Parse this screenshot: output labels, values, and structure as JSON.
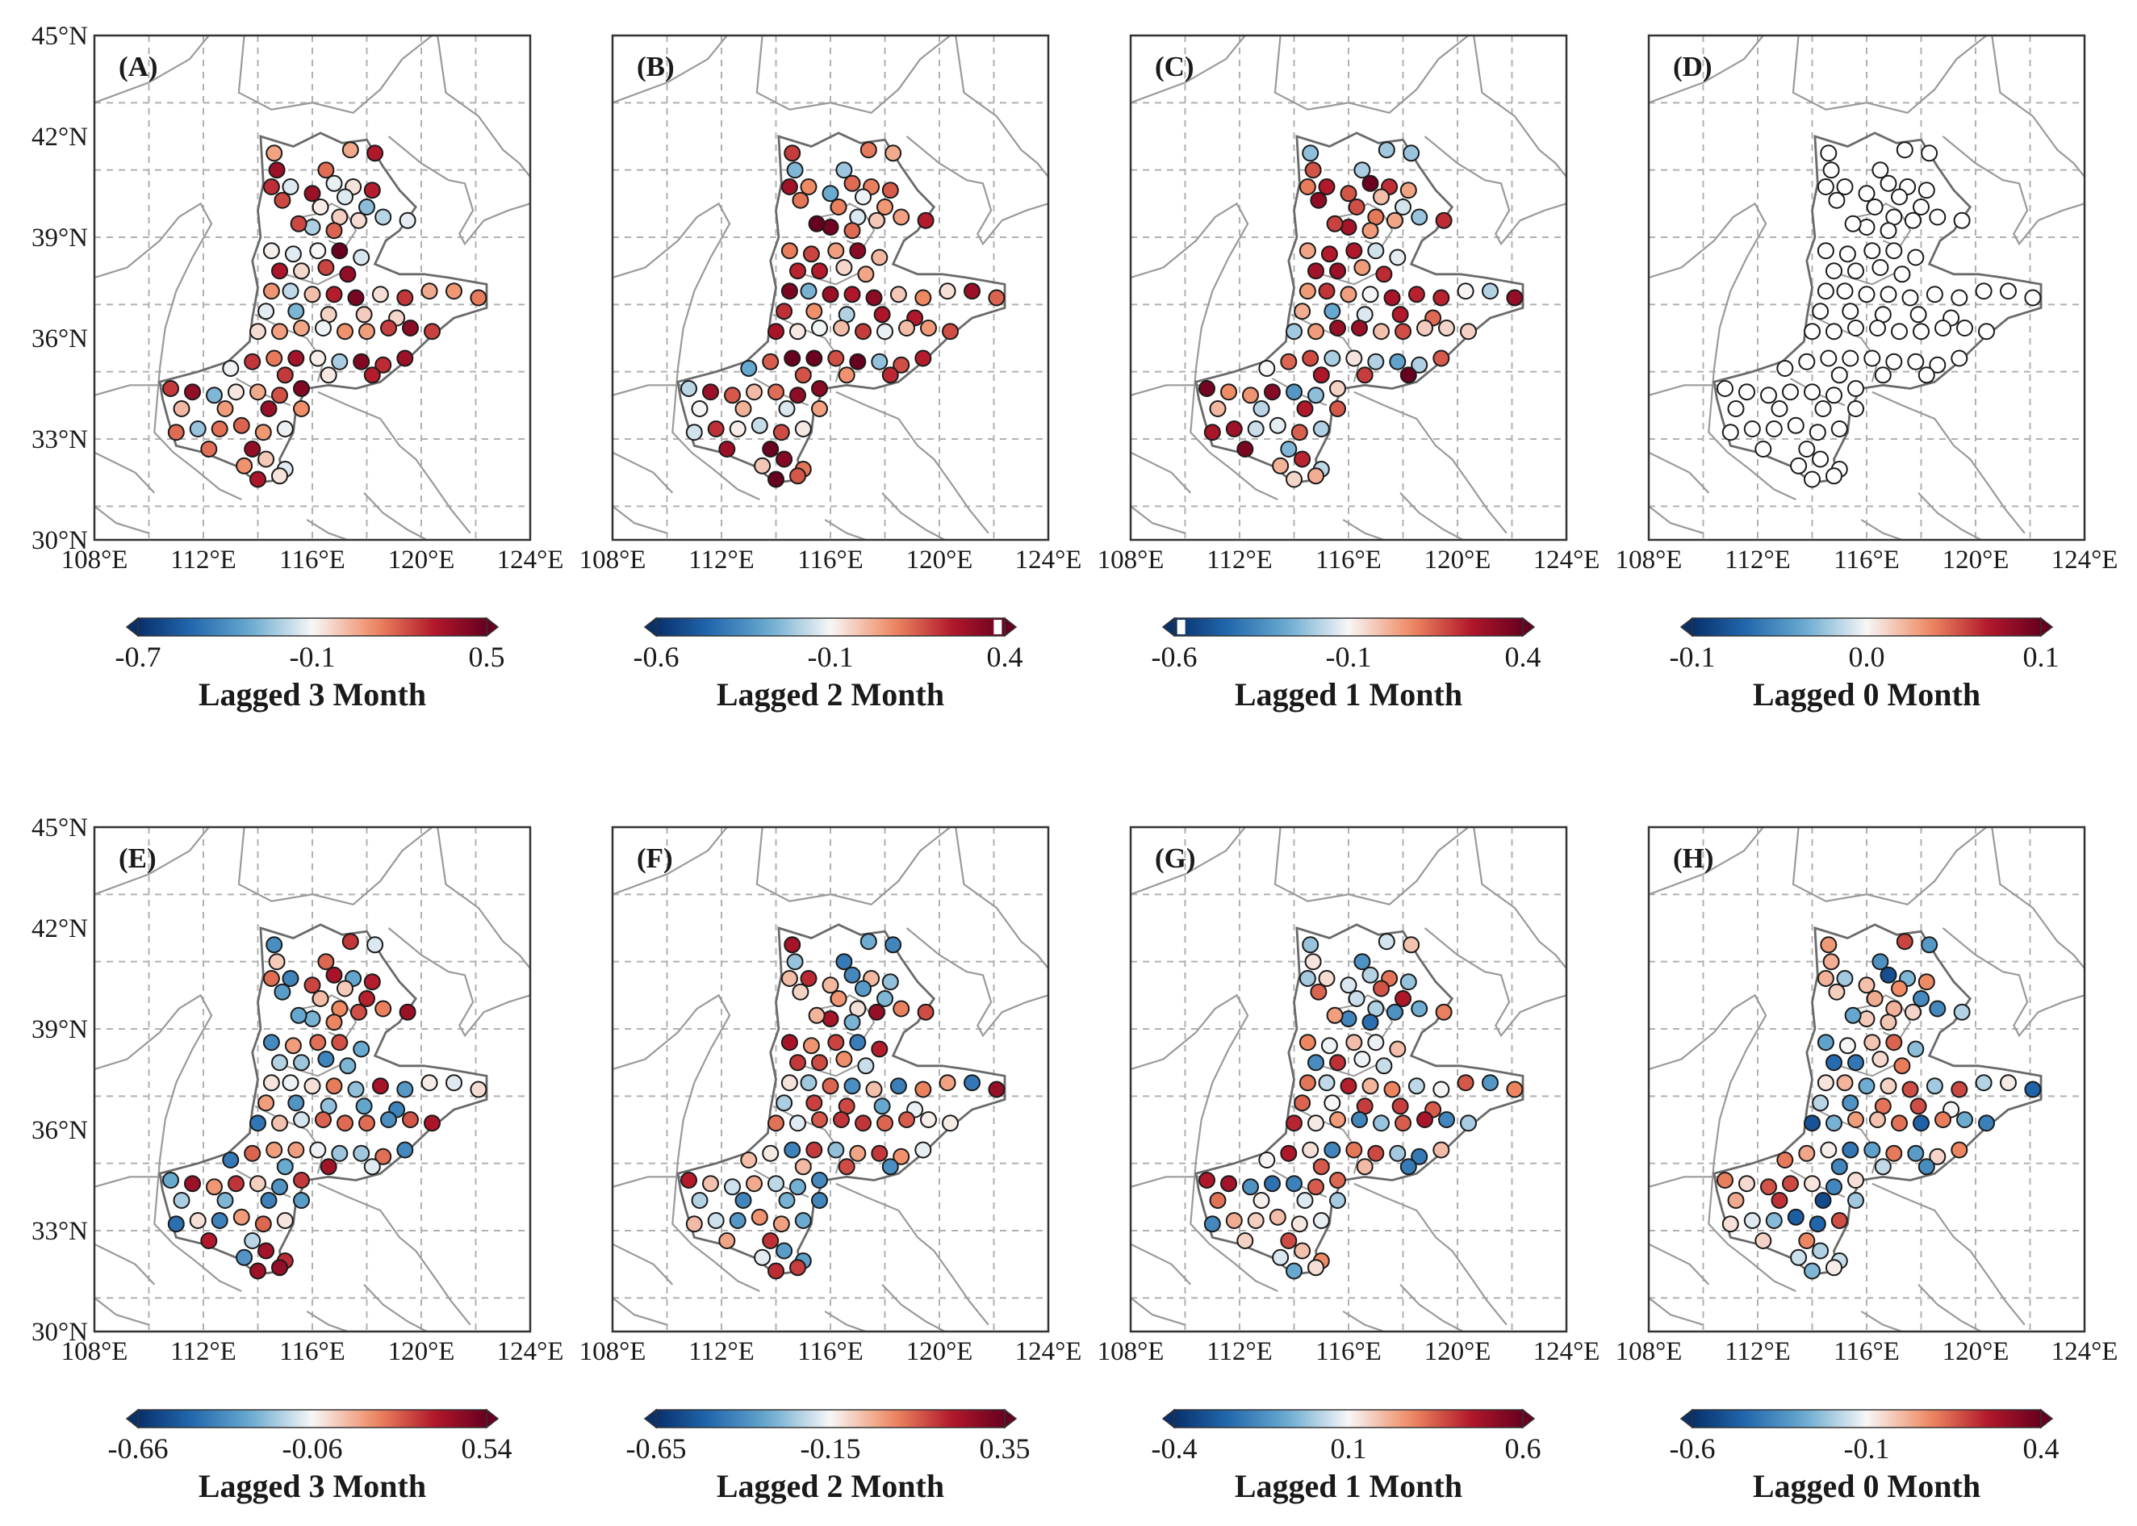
{
  "figure": {
    "lat_ticks": [
      "30°N",
      "33°N",
      "36°N",
      "39°N",
      "42°N",
      "45°N"
    ],
    "lon_ticks": [
      "108°E",
      "112°E",
      "116°E",
      "120°E",
      "124°E"
    ],
    "lat_range": [
      30,
      45
    ],
    "lon_range": [
      108,
      124
    ],
    "colors": {
      "neg_dark": "#08306b",
      "neg_mid": "#2f7fbc",
      "neutral": "#f7f7f7",
      "pos_mid": "#ef8a62",
      "pos_dark": "#67001f",
      "frame": "#333333",
      "border": "#9a9a9a",
      "grid": "#b0b0b0"
    }
  },
  "panels": [
    {
      "label": "(A)",
      "title": "Lagged 3 Month",
      "ticks": [
        "-0.7",
        "-0.1",
        "0.5"
      ],
      "tick_values": [
        -0.7,
        -0.1,
        0.5
      ],
      "range": [
        -0.7,
        0.5
      ],
      "marker": null,
      "bias": 0.35,
      "spread": 0.55
    },
    {
      "label": "(B)",
      "title": "Lagged 2 Month",
      "ticks": [
        "-0.6",
        "-0.1",
        "0.4"
      ],
      "tick_values": [
        -0.6,
        -0.1,
        0.4
      ],
      "range": [
        -0.6,
        0.4
      ],
      "marker": 0.38,
      "bias": 0.45,
      "spread": 0.6
    },
    {
      "label": "(C)",
      "title": "Lagged 1 Month",
      "ticks": [
        "-0.6",
        "-0.1",
        "0.4"
      ],
      "tick_values": [
        -0.6,
        -0.1,
        0.4
      ],
      "range": [
        -0.6,
        0.4
      ],
      "marker": -0.58,
      "bias": 0.3,
      "spread": 0.6
    },
    {
      "label": "(D)",
      "title": "Lagged 0 Month",
      "ticks": [
        "-0.1",
        "0.0",
        "0.1"
      ],
      "tick_values": [
        -0.1,
        0.0,
        0.1
      ],
      "range": [
        -0.1,
        0.1
      ],
      "marker": null,
      "bias": 0.0,
      "spread": 0.0
    },
    {
      "label": "(E)",
      "title": "Lagged 3 Month",
      "ticks": [
        "-0.66",
        "-0.06",
        "0.54"
      ],
      "tick_values": [
        -0.66,
        -0.06,
        0.54
      ],
      "range": [
        -0.66,
        0.54
      ],
      "marker": null,
      "bias": 0.1,
      "spread": 0.7
    },
    {
      "label": "(F)",
      "title": "Lagged 2 Month",
      "ticks": [
        "-0.65",
        "-0.15",
        "0.35"
      ],
      "tick_values": [
        -0.65,
        -0.15,
        0.35
      ],
      "range": [
        -0.65,
        0.35
      ],
      "marker": null,
      "bias": 0.1,
      "spread": 0.7
    },
    {
      "label": "(G)",
      "title": "Lagged 1 Month",
      "ticks": [
        "-0.4",
        "0.1",
        "0.6"
      ],
      "tick_values": [
        -0.4,
        0.1,
        0.6
      ],
      "range": [
        -0.4,
        0.6
      ],
      "marker": null,
      "bias": 0.05,
      "spread": 0.7
    },
    {
      "label": "(H)",
      "title": "Lagged 0 Month",
      "ticks": [
        "-0.6",
        "-0.1",
        "0.4"
      ],
      "tick_values": [
        -0.6,
        -0.1,
        0.4
      ],
      "range": [
        -0.6,
        0.4
      ],
      "marker": null,
      "bias": -0.15,
      "spread": 0.7
    }
  ],
  "stations": [
    [
      114.6,
      41.5
    ],
    [
      117.4,
      41.6
    ],
    [
      114.7,
      41.0
    ],
    [
      116.5,
      41.0
    ],
    [
      118.3,
      41.5
    ],
    [
      114.5,
      40.5
    ],
    [
      115.2,
      40.5
    ],
    [
      116.0,
      40.3
    ],
    [
      116.8,
      40.6
    ],
    [
      117.5,
      40.5
    ],
    [
      118.2,
      40.4
    ],
    [
      114.9,
      40.1
    ],
    [
      117.2,
      40.2
    ],
    [
      118.0,
      39.9
    ],
    [
      116.3,
      39.9
    ],
    [
      117.0,
      39.6
    ],
    [
      117.7,
      39.5
    ],
    [
      118.6,
      39.6
    ],
    [
      119.5,
      39.5
    ],
    [
      116.0,
      39.3
    ],
    [
      116.8,
      39.2
    ],
    [
      115.5,
      39.4
    ],
    [
      114.5,
      38.6
    ],
    [
      115.3,
      38.5
    ],
    [
      116.2,
      38.6
    ],
    [
      117.0,
      38.6
    ],
    [
      117.8,
      38.4
    ],
    [
      114.8,
      38.0
    ],
    [
      115.6,
      38.0
    ],
    [
      116.5,
      38.1
    ],
    [
      117.3,
      37.9
    ],
    [
      114.5,
      37.4
    ],
    [
      115.2,
      37.4
    ],
    [
      116.0,
      37.3
    ],
    [
      116.8,
      37.3
    ],
    [
      117.6,
      37.2
    ],
    [
      118.5,
      37.3
    ],
    [
      119.4,
      37.2
    ],
    [
      120.3,
      37.4
    ],
    [
      121.2,
      37.4
    ],
    [
      122.1,
      37.2
    ],
    [
      114.3,
      36.8
    ],
    [
      115.4,
      36.8
    ],
    [
      116.6,
      36.7
    ],
    [
      117.9,
      36.7
    ],
    [
      119.1,
      36.6
    ],
    [
      114.0,
      36.2
    ],
    [
      114.8,
      36.2
    ],
    [
      115.6,
      36.3
    ],
    [
      116.4,
      36.3
    ],
    [
      117.2,
      36.2
    ],
    [
      118.0,
      36.2
    ],
    [
      118.8,
      36.3
    ],
    [
      119.6,
      36.3
    ],
    [
      120.4,
      36.2
    ],
    [
      113.0,
      35.1
    ],
    [
      113.8,
      35.3
    ],
    [
      114.6,
      35.4
    ],
    [
      115.4,
      35.4
    ],
    [
      116.2,
      35.4
    ],
    [
      117.0,
      35.3
    ],
    [
      117.8,
      35.3
    ],
    [
      118.6,
      35.2
    ],
    [
      119.4,
      35.4
    ],
    [
      115.0,
      34.9
    ],
    [
      116.6,
      34.9
    ],
    [
      118.2,
      34.9
    ],
    [
      110.8,
      34.5
    ],
    [
      111.6,
      34.4
    ],
    [
      112.4,
      34.3
    ],
    [
      113.2,
      34.4
    ],
    [
      114.0,
      34.4
    ],
    [
      114.8,
      34.3
    ],
    [
      115.6,
      34.5
    ],
    [
      111.2,
      33.9
    ],
    [
      112.8,
      33.9
    ],
    [
      114.4,
      33.9
    ],
    [
      115.6,
      33.9
    ],
    [
      111.0,
      33.2
    ],
    [
      111.8,
      33.3
    ],
    [
      112.6,
      33.3
    ],
    [
      113.4,
      33.4
    ],
    [
      114.2,
      33.2
    ],
    [
      115.0,
      33.3
    ],
    [
      112.2,
      32.7
    ],
    [
      113.8,
      32.7
    ],
    [
      113.5,
      32.2
    ],
    [
      114.3,
      32.4
    ],
    [
      115.0,
      32.1
    ],
    [
      114.0,
      31.8
    ],
    [
      114.8,
      31.9
    ]
  ]
}
